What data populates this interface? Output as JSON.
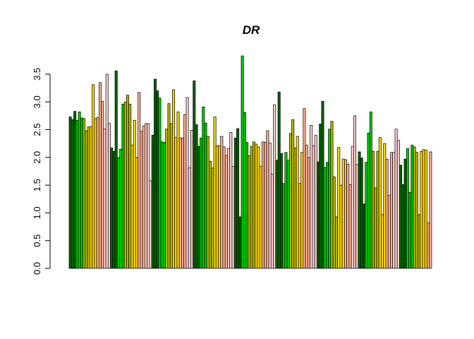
{
  "chart_data": {
    "type": "bar",
    "title": "DR",
    "xlabel": "",
    "ylabel": "",
    "ylim": [
      0,
      3.8
    ],
    "yticks": [
      "0.0",
      "0.5",
      "1.0",
      "1.5",
      "2.0",
      "2.5",
      "3.0",
      "3.5"
    ],
    "grid": false,
    "legend": "none",
    "palette": [
      "#006400",
      "#00cc00",
      "#b8b800",
      "#ffd700",
      "#ffb090",
      "#ffd0d0"
    ],
    "values": [
      2.73,
      2.68,
      2.83,
      2.67,
      2.82,
      2.71,
      2.7,
      2.48,
      2.55,
      2.55,
      3.31,
      2.7,
      2.72,
      3.35,
      3.01,
      2.51,
      3.5,
      2.61,
      2.17,
      2.11,
      3.56,
      2.0,
      2.15,
      2.96,
      3.0,
      3.12,
      2.96,
      2.22,
      2.67,
      2.0,
      3.17,
      2.47,
      2.57,
      2.61,
      2.61,
      1.58,
      2.4,
      3.41,
      3.2,
      3.07,
      2.28,
      2.27,
      2.51,
      2.97,
      2.61,
      3.22,
      2.36,
      2.82,
      2.35,
      2.35,
      2.77,
      3.08,
      1.81,
      2.49,
      3.38,
      2.59,
      2.2,
      2.35,
      2.91,
      2.62,
      2.38,
      1.93,
      1.81,
      2.73,
      2.21,
      2.21,
      2.38,
      2.19,
      2.03,
      2.16,
      2.45,
      1.84,
      2.35,
      2.52,
      0.93,
      3.83,
      2.81,
      2.27,
      2.03,
      2.2,
      2.28,
      2.24,
      2.19,
      1.84,
      2.28,
      2.27,
      2.48,
      2.26,
      1.7,
      2.95,
      1.95,
      3.18,
      2.07,
      1.53,
      2.09,
      1.95,
      2.43,
      2.68,
      2.17,
      2.38,
      1.53,
      2.09,
      2.88,
      2.22,
      2.0,
      2.58,
      2.21,
      2.4,
      1.92,
      2.6,
      3.01,
      1.82,
      1.91,
      2.51,
      2.65,
      1.65,
      0.93,
      2.18,
      1.5,
      1.97,
      1.96,
      1.88,
      1.51,
      2.2,
      2.75,
      1.87,
      2.1,
      1.99,
      1.16,
      1.91,
      2.44,
      2.82,
      2.11,
      1.45,
      2.11,
      2.36,
      0.97,
      2.25,
      1.97,
      1.32,
      2.09,
      2.09,
      2.51,
      2.31,
      1.86,
      1.51,
      1.97,
      2.16,
      1.37,
      2.22,
      2.19,
      2.09,
      0.97,
      2.11,
      2.14,
      2.13,
      0.82,
      2.1
    ]
  }
}
